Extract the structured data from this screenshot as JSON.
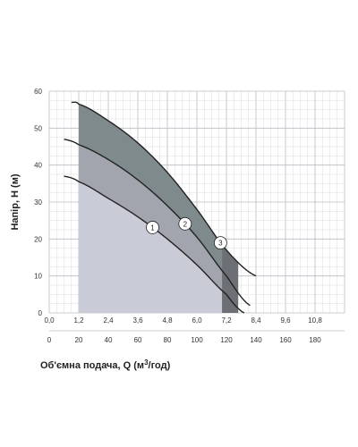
{
  "chart_data": {
    "type": "line",
    "title": "",
    "xlabel_top": "",
    "ylabel": "Напір, Н (м)",
    "xlabel": "Об'ємна подача, Q (м³/год)",
    "xlabel_main": "Об'ємна подача, Q (м",
    "xlabel_sup": "3",
    "xlabel_tail": "/год)",
    "x_top": {
      "unit": "m3/h",
      "lim": [
        0,
        12
      ],
      "ticks": [
        "0,0",
        "1,2",
        "2,4",
        "3,6",
        "4,8",
        "6,0",
        "7,2",
        "8,4",
        "9,6",
        "10,8"
      ]
    },
    "x_bottom": {
      "unit": "l/min",
      "lim": [
        0,
        200
      ],
      "ticks": [
        "0",
        "20",
        "40",
        "60",
        "80",
        "100",
        "120",
        "140",
        "160",
        "180"
      ]
    },
    "y": {
      "lim": [
        0,
        60
      ],
      "ticks": [
        "0",
        "10",
        "20",
        "30",
        "40",
        "50",
        "60"
      ]
    },
    "grid": true,
    "series": [
      {
        "name": "1",
        "color": "#222222",
        "x_lpm": [
          10,
          20,
          40,
          60,
          80,
          100,
          120,
          132
        ],
        "y": [
          37,
          35.5,
          31,
          26,
          20,
          13,
          5,
          0
        ]
      },
      {
        "name": "2",
        "color": "#222222",
        "x_lpm": [
          10,
          20,
          40,
          60,
          80,
          100,
          120,
          136
        ],
        "y": [
          47,
          45.5,
          41.5,
          36,
          29,
          20.5,
          10,
          2
        ]
      },
      {
        "name": "3",
        "color": "#222222",
        "x_lpm": [
          15,
          20,
          40,
          60,
          80,
          100,
          120,
          140
        ],
        "y": [
          57,
          56.5,
          52,
          46,
          38,
          28,
          17,
          10
        ]
      }
    ],
    "shaded_regions": [
      {
        "series": "1",
        "x_lpm_range": [
          20,
          117
        ],
        "color": "#c9cbd6"
      },
      {
        "series": "2",
        "x_lpm_range": [
          20,
          117
        ],
        "color": "#a2a5ae"
      },
      {
        "series": "3",
        "x_lpm_range": [
          20,
          117
        ],
        "color": "#7e8a8b"
      },
      {
        "series": "all",
        "x_lpm_range": [
          117,
          128
        ],
        "color": "#6c7075"
      }
    ]
  }
}
